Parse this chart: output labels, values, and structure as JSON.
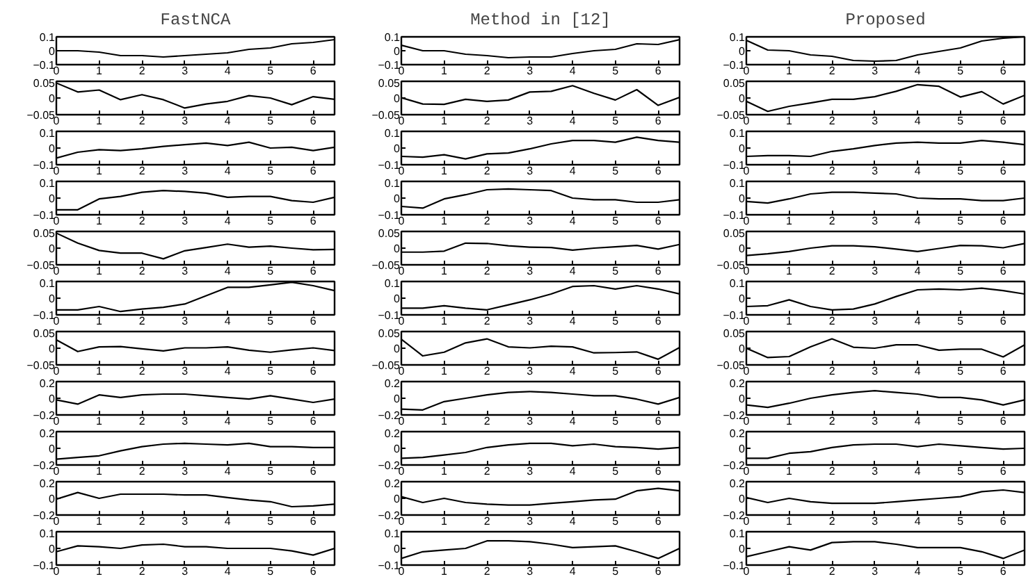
{
  "chart_data": [
    {
      "type": "line",
      "title": "FastNCA",
      "color": "#000000",
      "x": [
        0,
        0.5,
        1,
        1.5,
        2,
        2.5,
        3,
        3.5,
        4,
        4.5,
        5,
        5.5,
        6,
        6.5
      ],
      "values": [
        0,
        0,
        -0.01,
        -0.035,
        -0.035,
        -0.045,
        -0.035,
        -0.025,
        -0.015,
        0.01,
        0.02,
        0.05,
        0.06,
        0.08
      ],
      "xlim": [
        0,
        6.5
      ],
      "xticks": [
        0,
        1,
        2,
        3,
        4,
        5,
        6
      ],
      "ylim": [
        -0.1,
        0.1
      ],
      "yticks": [
        -0.1,
        0,
        0.1
      ]
    },
    {
      "type": "line",
      "title": "Method in [12]",
      "color": "#000000",
      "x": [
        0,
        0.5,
        1,
        1.5,
        2,
        2.5,
        3,
        3.5,
        4,
        4.5,
        5,
        5.5,
        6,
        6.5
      ],
      "values": [
        0.04,
        0,
        0,
        -0.025,
        -0.035,
        -0.05,
        -0.045,
        -0.045,
        -0.02,
        0,
        0.01,
        0.05,
        0.045,
        0.08
      ],
      "xlim": [
        0,
        6.5
      ],
      "xticks": [
        0,
        1,
        2,
        3,
        4,
        5,
        6
      ],
      "ylim": [
        -0.1,
        0.1
      ],
      "yticks": [
        -0.1,
        0,
        0.1
      ]
    },
    {
      "type": "line",
      "title": "Proposed",
      "color": "#000000",
      "x": [
        0,
        0.5,
        1,
        1.5,
        2,
        2.5,
        3,
        3.5,
        4,
        4.5,
        5,
        5.5,
        6,
        6.5
      ],
      "values": [
        0.075,
        0.005,
        0,
        -0.03,
        -0.04,
        -0.07,
        -0.075,
        -0.07,
        -0.03,
        -0.005,
        0.02,
        0.07,
        0.09,
        0.1
      ],
      "xlim": [
        0,
        6.5
      ],
      "xticks": [
        0,
        1,
        2,
        3,
        4,
        5,
        6
      ],
      "ylim": [
        -0.1,
        0.1
      ],
      "yticks": [
        -0.1,
        0,
        0.1
      ]
    },
    {
      "type": "line",
      "color": "#000000",
      "x": [
        0,
        0.5,
        1,
        1.5,
        2,
        2.5,
        3,
        3.5,
        4,
        4.5,
        5,
        5.5,
        6,
        6.5
      ],
      "values": [
        0.045,
        0.018,
        0.024,
        -0.005,
        0.01,
        -0.005,
        -0.03,
        -0.018,
        -0.01,
        0.007,
        0,
        -0.02,
        0.004,
        -0.004
      ],
      "xlim": [
        0,
        6.5
      ],
      "xticks": [
        0,
        1,
        2,
        3,
        4,
        5,
        6
      ],
      "ylim": [
        -0.05,
        0.05
      ],
      "yticks": [
        -0.05,
        0,
        0.05
      ]
    },
    {
      "type": "line",
      "color": "#000000",
      "x": [
        0,
        0.5,
        1,
        1.5,
        2,
        2.5,
        3,
        3.5,
        4,
        4.5,
        5,
        5.5,
        6,
        6.5
      ],
      "values": [
        0.001,
        -0.018,
        -0.019,
        -0.004,
        -0.01,
        -0.006,
        0.018,
        0.02,
        0.037,
        0.014,
        -0.006,
        0.025,
        -0.022,
        0.002
      ],
      "xlim": [
        0,
        6.5
      ],
      "xticks": [
        0,
        1,
        2,
        3,
        4,
        5,
        6
      ],
      "ylim": [
        -0.05,
        0.05
      ],
      "yticks": [
        -0.05,
        0,
        0.05
      ]
    },
    {
      "type": "line",
      "color": "#000000",
      "x": [
        0,
        0.5,
        1,
        1.5,
        2,
        2.5,
        3,
        3.5,
        4,
        4.5,
        5,
        5.5,
        6,
        6.5
      ],
      "values": [
        -0.01,
        -0.04,
        -0.025,
        -0.015,
        -0.004,
        -0.004,
        0.004,
        0.02,
        0.04,
        0.035,
        0.003,
        0.019,
        -0.018,
        0.008
      ],
      "xlim": [
        0,
        6.5
      ],
      "xticks": [
        0,
        1,
        2,
        3,
        4,
        5,
        6
      ],
      "ylim": [
        -0.05,
        0.05
      ],
      "yticks": [
        -0.05,
        0,
        0.05
      ]
    },
    {
      "type": "line",
      "color": "#000000",
      "x": [
        0,
        0.5,
        1,
        1.5,
        2,
        2.5,
        3,
        3.5,
        4,
        4.5,
        5,
        5.5,
        6,
        6.5
      ],
      "values": [
        -0.06,
        -0.025,
        -0.01,
        -0.015,
        -0.005,
        0.01,
        0.02,
        0.03,
        0.015,
        0.035,
        0,
        0.005,
        -0.015,
        0.005
      ],
      "xlim": [
        0,
        6.5
      ],
      "xticks": [
        0,
        1,
        2,
        3,
        4,
        5,
        6
      ],
      "ylim": [
        -0.1,
        0.1
      ],
      "yticks": [
        -0.1,
        0,
        0.1
      ]
    },
    {
      "type": "line",
      "color": "#000000",
      "x": [
        0,
        0.5,
        1,
        1.5,
        2,
        2.5,
        3,
        3.5,
        4,
        4.5,
        5,
        5.5,
        6,
        6.5
      ],
      "values": [
        -0.05,
        -0.055,
        -0.04,
        -0.065,
        -0.035,
        -0.03,
        -0.005,
        0.025,
        0.045,
        0.045,
        0.035,
        0.065,
        0.045,
        0.035
      ],
      "xlim": [
        0,
        6.5
      ],
      "xticks": [
        0,
        1,
        2,
        3,
        4,
        5,
        6
      ],
      "ylim": [
        -0.1,
        0.1
      ],
      "yticks": [
        -0.1,
        0,
        0.1
      ]
    },
    {
      "type": "line",
      "color": "#000000",
      "x": [
        0,
        0.5,
        1,
        1.5,
        2,
        2.5,
        3,
        3.5,
        4,
        4.5,
        5,
        5.5,
        6,
        6.5
      ],
      "values": [
        -0.05,
        -0.045,
        -0.045,
        -0.05,
        -0.02,
        -0.005,
        0.015,
        0.03,
        0.035,
        0.03,
        0.03,
        0.045,
        0.035,
        0.02
      ],
      "xlim": [
        0,
        6.5
      ],
      "xticks": [
        0,
        1,
        2,
        3,
        4,
        5,
        6
      ],
      "ylim": [
        -0.1,
        0.1
      ],
      "yticks": [
        -0.1,
        0,
        0.1
      ]
    },
    {
      "type": "line",
      "color": "#000000",
      "x": [
        0,
        0.5,
        1,
        1.5,
        2,
        2.5,
        3,
        3.5,
        4,
        4.5,
        5,
        5.5,
        6,
        6.5
      ],
      "values": [
        -0.07,
        -0.07,
        -0.005,
        0.01,
        0.035,
        0.045,
        0.04,
        0.03,
        0.005,
        0.01,
        0.01,
        -0.015,
        -0.025,
        0.005
      ],
      "xlim": [
        0,
        6.5
      ],
      "xticks": [
        0,
        1,
        2,
        3,
        4,
        5,
        6
      ],
      "ylim": [
        -0.1,
        0.1
      ],
      "yticks": [
        -0.1,
        0,
        0.1
      ]
    },
    {
      "type": "line",
      "color": "#000000",
      "x": [
        0,
        0.5,
        1,
        1.5,
        2,
        2.5,
        3,
        3.5,
        4,
        4.5,
        5,
        5.5,
        6,
        6.5
      ],
      "values": [
        -0.05,
        -0.06,
        -0.005,
        0.02,
        0.05,
        0.055,
        0.05,
        0.045,
        0,
        -0.01,
        -0.01,
        -0.025,
        -0.025,
        -0.01
      ],
      "xlim": [
        0,
        6.5
      ],
      "xticks": [
        0,
        1,
        2,
        3,
        4,
        5,
        6
      ],
      "ylim": [
        -0.1,
        0.1
      ],
      "yticks": [
        -0.1,
        0,
        0.1
      ]
    },
    {
      "type": "line",
      "color": "#000000",
      "x": [
        0,
        0.5,
        1,
        1.5,
        2,
        2.5,
        3,
        3.5,
        4,
        4.5,
        5,
        5.5,
        6,
        6.5
      ],
      "values": [
        -0.02,
        -0.03,
        -0.005,
        0.025,
        0.035,
        0.035,
        0.03,
        0.025,
        0,
        -0.005,
        -0.005,
        -0.015,
        -0.015,
        0
      ],
      "xlim": [
        0,
        6.5
      ],
      "xticks": [
        0,
        1,
        2,
        3,
        4,
        5,
        6
      ],
      "ylim": [
        -0.1,
        0.1
      ],
      "yticks": [
        -0.1,
        0,
        0.1
      ]
    },
    {
      "type": "line",
      "color": "#000000",
      "x": [
        0,
        0.5,
        1,
        1.5,
        2,
        2.5,
        3,
        3.5,
        4,
        4.5,
        5,
        5.5,
        6,
        6.5
      ],
      "values": [
        0.045,
        0.015,
        -0.007,
        -0.015,
        -0.015,
        -0.032,
        -0.008,
        0.002,
        0.012,
        0.003,
        0.006,
        0,
        -0.005,
        -0.004
      ],
      "xlim": [
        0,
        6.5
      ],
      "xticks": [
        0,
        1,
        2,
        3,
        4,
        5,
        6
      ],
      "ylim": [
        -0.05,
        0.05
      ],
      "yticks": [
        -0.05,
        0,
        0.05
      ]
    },
    {
      "type": "line",
      "color": "#000000",
      "x": [
        0,
        0.5,
        1,
        1.5,
        2,
        2.5,
        3,
        3.5,
        4,
        4.5,
        5,
        5.5,
        6,
        6.5
      ],
      "values": [
        -0.012,
        -0.012,
        -0.009,
        0.015,
        0.014,
        0.007,
        0.003,
        0.002,
        -0.006,
        0,
        0.004,
        0.008,
        -0.003,
        0.011
      ],
      "xlim": [
        0,
        6.5
      ],
      "xticks": [
        0,
        1,
        2,
        3,
        4,
        5,
        6
      ],
      "ylim": [
        -0.05,
        0.05
      ],
      "yticks": [
        -0.05,
        0,
        0.05
      ]
    },
    {
      "type": "line",
      "color": "#000000",
      "x": [
        0,
        0.5,
        1,
        1.5,
        2,
        2.5,
        3,
        3.5,
        4,
        4.5,
        5,
        5.5,
        6,
        6.5
      ],
      "values": [
        -0.022,
        -0.017,
        -0.01,
        0,
        0.007,
        0.007,
        0.004,
        -0.003,
        -0.01,
        -0.001,
        0.008,
        0.007,
        0.001,
        0.014
      ],
      "xlim": [
        0,
        6.5
      ],
      "xticks": [
        0,
        1,
        2,
        3,
        4,
        5,
        6
      ],
      "ylim": [
        -0.05,
        0.05
      ],
      "yticks": [
        -0.05,
        0,
        0.05
      ]
    },
    {
      "type": "line",
      "color": "#000000",
      "x": [
        0,
        0.5,
        1,
        1.5,
        2,
        2.5,
        3,
        3.5,
        4,
        4.5,
        5,
        5.5,
        6,
        6.5
      ],
      "values": [
        -0.07,
        -0.07,
        -0.05,
        -0.08,
        -0.065,
        -0.055,
        -0.035,
        0.015,
        0.065,
        0.065,
        0.08,
        0.095,
        0.075,
        0.045
      ],
      "xlim": [
        0,
        6.5
      ],
      "xticks": [
        0,
        1,
        2,
        3,
        4,
        5,
        6
      ],
      "ylim": [
        -0.1,
        0.1
      ],
      "yticks": [
        -0.1,
        0,
        0.1
      ]
    },
    {
      "type": "line",
      "color": "#000000",
      "x": [
        0,
        0.5,
        1,
        1.5,
        2,
        2.5,
        3,
        3.5,
        4,
        4.5,
        5,
        5.5,
        6,
        6.5
      ],
      "values": [
        -0.06,
        -0.06,
        -0.045,
        -0.06,
        -0.07,
        -0.04,
        -0.01,
        0.025,
        0.07,
        0.075,
        0.055,
        0.075,
        0.055,
        0.025
      ],
      "xlim": [
        0,
        6.5
      ],
      "xticks": [
        0,
        1,
        2,
        3,
        4,
        5,
        6
      ],
      "ylim": [
        -0.1,
        0.1
      ],
      "yticks": [
        -0.1,
        0,
        0.1
      ]
    },
    {
      "type": "line",
      "color": "#000000",
      "x": [
        0,
        0.5,
        1,
        1.5,
        2,
        2.5,
        3,
        3.5,
        4,
        4.5,
        5,
        5.5,
        6,
        6.5
      ],
      "values": [
        -0.05,
        -0.045,
        -0.01,
        -0.05,
        -0.07,
        -0.065,
        -0.035,
        0.01,
        0.05,
        0.055,
        0.05,
        0.06,
        0.045,
        0.025
      ],
      "xlim": [
        0,
        6.5
      ],
      "xticks": [
        0,
        1,
        2,
        3,
        4,
        5,
        6
      ],
      "ylim": [
        -0.1,
        0.1
      ],
      "yticks": [
        -0.1,
        0,
        0.1
      ]
    },
    {
      "type": "line",
      "color": "#000000",
      "x": [
        0,
        0.5,
        1,
        1.5,
        2,
        2.5,
        3,
        3.5,
        4,
        4.5,
        5,
        5.5,
        6,
        6.5
      ],
      "values": [
        0.025,
        -0.01,
        0.004,
        0.005,
        -0.002,
        -0.008,
        0.001,
        0.001,
        0.004,
        -0.006,
        -0.012,
        -0.005,
        0.001,
        -0.007
      ],
      "xlim": [
        0,
        6.5
      ],
      "xticks": [
        0,
        1,
        2,
        3,
        4,
        5,
        6
      ],
      "ylim": [
        -0.05,
        0.05
      ],
      "yticks": [
        -0.05,
        0,
        0.05
      ]
    },
    {
      "type": "line",
      "color": "#000000",
      "x": [
        0,
        0.5,
        1,
        1.5,
        2,
        2.5,
        3,
        3.5,
        4,
        4.5,
        5,
        5.5,
        6,
        6.5
      ],
      "values": [
        0.027,
        -0.023,
        -0.012,
        0.016,
        0.028,
        0.004,
        0.001,
        0.006,
        0.004,
        -0.014,
        -0.013,
        -0.011,
        -0.033,
        0.002
      ],
      "xlim": [
        0,
        6.5
      ],
      "xticks": [
        0,
        1,
        2,
        3,
        4,
        5,
        6
      ],
      "ylim": [
        -0.05,
        0.05
      ],
      "yticks": [
        -0.05,
        0,
        0.05
      ]
    },
    {
      "type": "line",
      "color": "#000000",
      "x": [
        0,
        0.5,
        1,
        1.5,
        2,
        2.5,
        3,
        3.5,
        4,
        4.5,
        5,
        5.5,
        6,
        6.5
      ],
      "values": [
        0,
        -0.028,
        -0.025,
        0.004,
        0.028,
        0.003,
        0,
        0.01,
        0.01,
        -0.006,
        -0.003,
        -0.003,
        -0.026,
        0.01
      ],
      "xlim": [
        0,
        6.5
      ],
      "xticks": [
        0,
        1,
        2,
        3,
        4,
        5,
        6
      ],
      "ylim": [
        -0.05,
        0.05
      ],
      "yticks": [
        -0.05,
        0,
        0.05
      ]
    },
    {
      "type": "line",
      "color": "#000000",
      "x": [
        0,
        0.5,
        1,
        1.5,
        2,
        2.5,
        3,
        3.5,
        4,
        4.5,
        5,
        5.5,
        6,
        6.5
      ],
      "values": [
        -0.02,
        -0.07,
        0.04,
        0.01,
        0.04,
        0.05,
        0.05,
        0.03,
        0.01,
        -0.01,
        0.03,
        -0.01,
        -0.05,
        -0.01
      ],
      "xlim": [
        0,
        6.5
      ],
      "xticks": [
        0,
        1,
        2,
        3,
        4,
        5,
        6
      ],
      "ylim": [
        -0.2,
        0.2
      ],
      "yticks": [
        -0.2,
        0,
        0.2
      ]
    },
    {
      "type": "line",
      "color": "#000000",
      "x": [
        0,
        0.5,
        1,
        1.5,
        2,
        2.5,
        3,
        3.5,
        4,
        4.5,
        5,
        5.5,
        6,
        6.5
      ],
      "values": [
        -0.13,
        -0.14,
        -0.04,
        0,
        0.04,
        0.07,
        0.08,
        0.07,
        0.05,
        0.03,
        0.03,
        -0.01,
        -0.07,
        0.01
      ],
      "xlim": [
        0,
        6.5
      ],
      "xticks": [
        0,
        1,
        2,
        3,
        4,
        5,
        6
      ],
      "ylim": [
        -0.2,
        0.2
      ],
      "yticks": [
        -0.2,
        0,
        0.2
      ]
    },
    {
      "type": "line",
      "color": "#000000",
      "x": [
        0,
        0.5,
        1,
        1.5,
        2,
        2.5,
        3,
        3.5,
        4,
        4.5,
        5,
        5.5,
        6,
        6.5
      ],
      "values": [
        -0.08,
        -0.11,
        -0.06,
        0,
        0.04,
        0.07,
        0.09,
        0.07,
        0.05,
        0.01,
        0.01,
        -0.02,
        -0.08,
        -0.02
      ],
      "xlim": [
        0,
        6.5
      ],
      "xticks": [
        0,
        1,
        2,
        3,
        4,
        5,
        6
      ],
      "ylim": [
        -0.2,
        0.2
      ],
      "yticks": [
        -0.2,
        0,
        0.2
      ]
    },
    {
      "type": "line",
      "color": "#000000",
      "x": [
        0,
        0.5,
        1,
        1.5,
        2,
        2.5,
        3,
        3.5,
        4,
        4.5,
        5,
        5.5,
        6,
        6.5
      ],
      "values": [
        -0.13,
        -0.11,
        -0.09,
        -0.03,
        0.02,
        0.05,
        0.06,
        0.05,
        0.04,
        0.06,
        0.02,
        0.02,
        0.01,
        0.01
      ],
      "xlim": [
        0,
        6.5
      ],
      "xticks": [
        0,
        1,
        2,
        3,
        4,
        5,
        6
      ],
      "ylim": [
        -0.2,
        0.2
      ],
      "yticks": [
        -0.2,
        0,
        0.2
      ]
    },
    {
      "type": "line",
      "color": "#000000",
      "x": [
        0,
        0.5,
        1,
        1.5,
        2,
        2.5,
        3,
        3.5,
        4,
        4.5,
        5,
        5.5,
        6,
        6.5
      ],
      "values": [
        -0.12,
        -0.11,
        -0.08,
        -0.05,
        0.01,
        0.04,
        0.06,
        0.06,
        0.03,
        0.05,
        0.02,
        0.01,
        -0.01,
        0.01
      ],
      "xlim": [
        0,
        6.5
      ],
      "xticks": [
        0,
        1,
        2,
        3,
        4,
        5,
        6
      ],
      "ylim": [
        -0.2,
        0.2
      ],
      "yticks": [
        -0.2,
        0,
        0.2
      ]
    },
    {
      "type": "line",
      "color": "#000000",
      "x": [
        0,
        0.5,
        1,
        1.5,
        2,
        2.5,
        3,
        3.5,
        4,
        4.5,
        5,
        5.5,
        6,
        6.5
      ],
      "values": [
        -0.12,
        -0.12,
        -0.06,
        -0.04,
        0.01,
        0.04,
        0.05,
        0.05,
        0.02,
        0.05,
        0.03,
        0.01,
        -0.01,
        0
      ],
      "xlim": [
        0,
        6.5
      ],
      "xticks": [
        0,
        1,
        2,
        3,
        4,
        5,
        6
      ],
      "ylim": [
        -0.2,
        0.2
      ],
      "yticks": [
        -0.2,
        0,
        0.2
      ]
    },
    {
      "type": "line",
      "color": "#000000",
      "x": [
        0,
        0.5,
        1,
        1.5,
        2,
        2.5,
        3,
        3.5,
        4,
        4.5,
        5,
        5.5,
        6,
        6.5
      ],
      "values": [
        -0.01,
        0.07,
        0,
        0.05,
        0.05,
        0.05,
        0.04,
        0.04,
        0.01,
        -0.02,
        -0.04,
        -0.1,
        -0.09,
        -0.07
      ],
      "xlim": [
        0,
        6.5
      ],
      "xticks": [
        0,
        1,
        2,
        3,
        4,
        5,
        6
      ],
      "ylim": [
        -0.2,
        0.2
      ],
      "yticks": [
        -0.2,
        0,
        0.2
      ]
    },
    {
      "type": "line",
      "color": "#000000",
      "x": [
        0,
        0.5,
        1,
        1.5,
        2,
        2.5,
        3,
        3.5,
        4,
        4.5,
        5,
        5.5,
        6,
        6.5
      ],
      "values": [
        0.02,
        -0.05,
        0,
        -0.05,
        -0.07,
        -0.08,
        -0.08,
        -0.06,
        -0.04,
        -0.02,
        -0.01,
        0.09,
        0.12,
        0.09
      ],
      "xlim": [
        0,
        6.5
      ],
      "xticks": [
        0,
        1,
        2,
        3,
        4,
        5,
        6
      ],
      "ylim": [
        -0.2,
        0.2
      ],
      "yticks": [
        -0.2,
        0,
        0.2
      ]
    },
    {
      "type": "line",
      "color": "#000000",
      "x": [
        0,
        0.5,
        1,
        1.5,
        2,
        2.5,
        3,
        3.5,
        4,
        4.5,
        5,
        5.5,
        6,
        6.5
      ],
      "values": [
        0.01,
        -0.05,
        0,
        -0.04,
        -0.06,
        -0.06,
        -0.06,
        -0.04,
        -0.02,
        0,
        0.02,
        0.08,
        0.1,
        0.07
      ],
      "xlim": [
        0,
        6.5
      ],
      "xticks": [
        0,
        1,
        2,
        3,
        4,
        5,
        6
      ],
      "ylim": [
        -0.2,
        0.2
      ],
      "yticks": [
        -0.2,
        0,
        0.2
      ]
    },
    {
      "type": "line",
      "color": "#000000",
      "x": [
        0,
        0.5,
        1,
        1.5,
        2,
        2.5,
        3,
        3.5,
        4,
        4.5,
        5,
        5.5,
        6,
        6.5
      ],
      "values": [
        -0.02,
        0.015,
        0.01,
        0,
        0.02,
        0.025,
        0.01,
        0.01,
        0,
        0,
        0,
        -0.015,
        -0.04,
        0
      ],
      "xlim": [
        0,
        6.5
      ],
      "xticks": [
        0,
        1,
        2,
        3,
        4,
        5,
        6
      ],
      "ylim": [
        -0.1,
        0.1
      ],
      "yticks": [
        -0.1,
        0,
        0.1
      ]
    },
    {
      "type": "line",
      "color": "#000000",
      "x": [
        0,
        0.5,
        1,
        1.5,
        2,
        2.5,
        3,
        3.5,
        4,
        4.5,
        5,
        5.5,
        6,
        6.5
      ],
      "values": [
        -0.06,
        -0.02,
        -0.01,
        0,
        0.045,
        0.045,
        0.04,
        0.025,
        0.005,
        0.01,
        0.015,
        -0.02,
        -0.06,
        0
      ],
      "xlim": [
        0,
        6.5
      ],
      "xticks": [
        0,
        1,
        2,
        3,
        4,
        5,
        6
      ],
      "ylim": [
        -0.1,
        0.1
      ],
      "yticks": [
        -0.1,
        0,
        0.1
      ]
    },
    {
      "type": "line",
      "color": "#000000",
      "x": [
        0,
        0.5,
        1,
        1.5,
        2,
        2.5,
        3,
        3.5,
        4,
        4.5,
        5,
        5.5,
        6,
        6.5
      ],
      "values": [
        -0.05,
        -0.02,
        0.01,
        -0.01,
        0.035,
        0.04,
        0.04,
        0.025,
        0.005,
        0.005,
        0.005,
        -0.02,
        -0.06,
        -0.01
      ],
      "xlim": [
        0,
        6.5
      ],
      "xticks": [
        0,
        1,
        2,
        3,
        4,
        5,
        6
      ],
      "ylim": [
        -0.1,
        0.1
      ],
      "yticks": [
        -0.1,
        0,
        0.1
      ]
    }
  ]
}
